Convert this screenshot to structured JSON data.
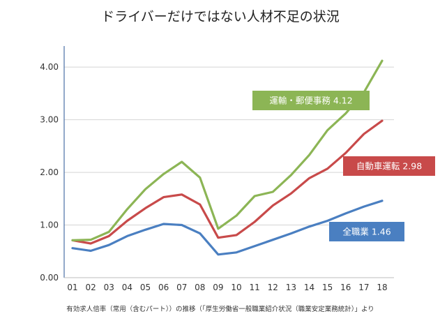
{
  "chart_data": {
    "type": "line",
    "title": "ドライバーだけではない人材不足の状況",
    "footnote": "有効求人倍率（常用（含むパート））の推移（「厚生労働省一般職業紹介状況（職業安定業務統計）」より",
    "categories": [
      "01",
      "02",
      "03",
      "04",
      "05",
      "06",
      "07",
      "08",
      "09",
      "10",
      "11",
      "12",
      "13",
      "14",
      "15",
      "16",
      "17",
      "18"
    ],
    "y_ticks": [
      "0.00",
      "1.00",
      "2.00",
      "3.00",
      "4.00"
    ],
    "ylim": [
      0,
      4.4
    ],
    "grid": true,
    "series": [
      {
        "name": "運輸・郵便事務",
        "label": "運輸・郵便事務 4.12",
        "color": "#8cb555",
        "values": [
          0.71,
          0.72,
          0.87,
          1.3,
          1.68,
          1.97,
          2.2,
          1.9,
          0.93,
          1.18,
          1.55,
          1.63,
          1.95,
          2.33,
          2.8,
          3.12,
          3.52,
          4.12
        ]
      },
      {
        "name": "自動車運転",
        "label": "自動車運転 2.98",
        "color": "#c84a4a",
        "values": [
          0.71,
          0.65,
          0.79,
          1.08,
          1.32,
          1.53,
          1.58,
          1.39,
          0.76,
          0.81,
          1.06,
          1.37,
          1.6,
          1.89,
          2.07,
          2.37,
          2.73,
          2.98
        ]
      },
      {
        "name": "全職業",
        "label": "全職業 1.46",
        "color": "#4a7fc1",
        "values": [
          0.56,
          0.51,
          0.62,
          0.79,
          0.91,
          1.02,
          1.0,
          0.84,
          0.44,
          0.48,
          0.6,
          0.72,
          0.84,
          0.97,
          1.08,
          1.22,
          1.35,
          1.46
        ]
      }
    ]
  }
}
